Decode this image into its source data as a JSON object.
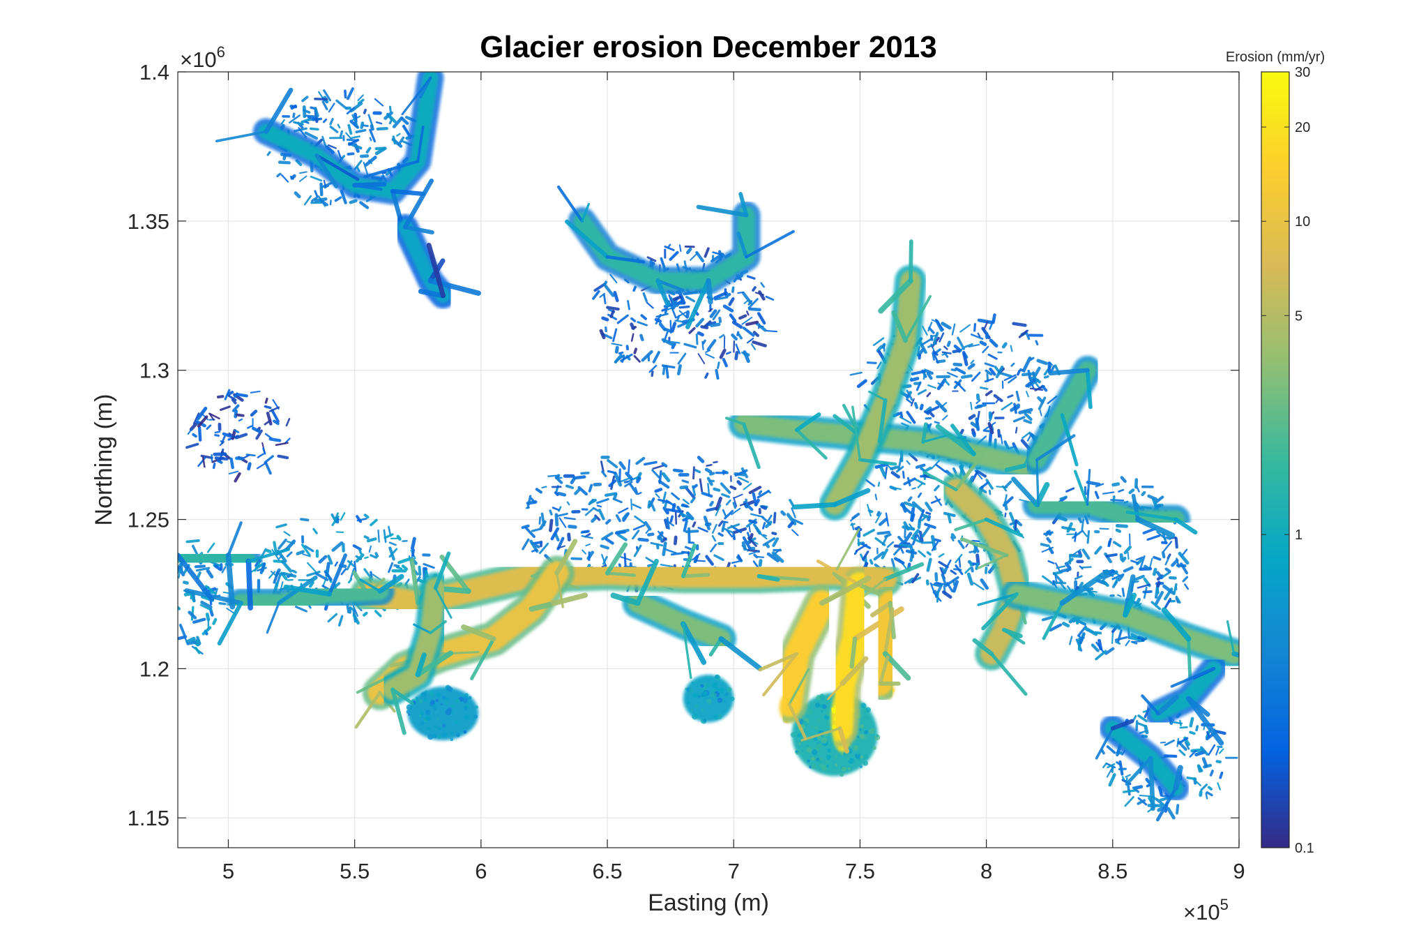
{
  "chart_data": {
    "type": "heatmap",
    "title": "Glacier erosion December 2013",
    "xlabel": "Easting (m)",
    "ylabel": "Northing (m)",
    "xlim": [
      480000,
      900000
    ],
    "ylim": [
      1140000,
      1400000
    ],
    "x_ticks": [
      500000,
      550000,
      600000,
      650000,
      700000,
      750000,
      800000,
      850000,
      900000
    ],
    "x_tick_labels": [
      "5",
      "5.5",
      "6",
      "6.5",
      "7",
      "7.5",
      "8",
      "8.5",
      "9"
    ],
    "x_exponent_label": "×10",
    "x_exponent": "5",
    "y_ticks": [
      1150000,
      1200000,
      1250000,
      1300000,
      1350000,
      1400000
    ],
    "y_tick_labels": [
      "1.15",
      "1.2",
      "1.25",
      "1.3",
      "1.35",
      "1.4"
    ],
    "y_exponent_label": "×10",
    "y_exponent": "6",
    "grid": true,
    "colorbar": {
      "label": "Erosion (mm/yr)",
      "scale": "log",
      "range": [
        0.1,
        30
      ],
      "ticks": [
        0.1,
        1,
        5,
        10,
        20,
        30
      ],
      "tick_labels": [
        "0.1",
        "1",
        "5",
        "10",
        "20",
        "30"
      ],
      "colormap": [
        "#352a87",
        "#0363e1",
        "#1485d4",
        "#06a7c6",
        "#38b99e",
        "#92bf73",
        "#d9ba56",
        "#fcce2e",
        "#f9fb0e"
      ]
    },
    "glacier_trunks": [
      {
        "name": "",
        "points": [
          [
            555000,
            1225000
          ],
          [
            575000,
            1222000
          ],
          [
            595000,
            1226000
          ],
          [
            620000,
            1231000
          ],
          [
            650000,
            1232000
          ],
          [
            680000,
            1231000
          ],
          [
            710000,
            1231000
          ],
          [
            740000,
            1232000
          ],
          [
            760000,
            1230000
          ]
        ],
        "erosion": 8
      },
      {
        "name": "",
        "points": [
          [
            630000,
            1232000
          ],
          [
            620000,
            1220000
          ],
          [
            605000,
            1210000
          ],
          [
            585000,
            1205000
          ],
          [
            570000,
            1200000
          ],
          [
            560000,
            1192000
          ]
        ],
        "erosion": 10
      },
      {
        "name": "",
        "points": [
          [
            582000,
            1227000
          ],
          [
            580000,
            1212000
          ],
          [
            575000,
            1198000
          ],
          [
            565000,
            1193000
          ]
        ],
        "erosion": 4
      },
      {
        "name": "",
        "points": [
          [
            662000,
            1222000
          ],
          [
            680000,
            1215000
          ],
          [
            695000,
            1210000
          ]
        ],
        "erosion": 3
      },
      {
        "name": "",
        "points": [
          [
            750000,
            1228000
          ],
          [
            748000,
            1210000
          ],
          [
            743000,
            1195000
          ],
          [
            742000,
            1180000
          ]
        ],
        "erosion": 18
      },
      {
        "name": "",
        "points": [
          [
            735000,
            1222000
          ],
          [
            725000,
            1205000
          ],
          [
            722000,
            1188000
          ]
        ],
        "erosion": 14
      },
      {
        "name": "",
        "points": [
          [
            762000,
            1222000
          ],
          [
            760000,
            1205000
          ],
          [
            758000,
            1195000
          ]
        ],
        "erosion": 12
      },
      {
        "name": "",
        "points": [
          [
            704000,
            1282000
          ],
          [
            725000,
            1280000
          ],
          [
            750000,
            1278000
          ],
          [
            775000,
            1276000
          ],
          [
            795000,
            1272000
          ],
          [
            815000,
            1268000
          ]
        ],
        "erosion": 3
      },
      {
        "name": "",
        "points": [
          [
            788000,
            1260000
          ],
          [
            800000,
            1250000
          ],
          [
            808000,
            1238000
          ],
          [
            812000,
            1225000
          ],
          [
            807000,
            1213000
          ],
          [
            802000,
            1205000
          ]
        ],
        "erosion": 6
      },
      {
        "name": "",
        "points": [
          [
            812000,
            1225000
          ],
          [
            830000,
            1222000
          ],
          [
            855000,
            1218000
          ],
          [
            880000,
            1210000
          ],
          [
            898000,
            1205000
          ]
        ],
        "erosion": 3
      },
      {
        "name": "",
        "points": [
          [
            820000,
            1255000
          ],
          [
            840000,
            1255000
          ],
          [
            860000,
            1250000
          ],
          [
            875000,
            1250000
          ]
        ],
        "erosion": 2
      },
      {
        "name": "",
        "points": [
          [
            770000,
            1330000
          ],
          [
            768000,
            1310000
          ],
          [
            760000,
            1290000
          ],
          [
            750000,
            1270000
          ],
          [
            740000,
            1255000
          ]
        ],
        "erosion": 4
      },
      {
        "name": "",
        "points": [
          [
            640000,
            1350000
          ],
          [
            650000,
            1338000
          ],
          [
            670000,
            1330000
          ],
          [
            690000,
            1330000
          ],
          [
            705000,
            1338000
          ],
          [
            705000,
            1352000
          ]
        ],
        "erosion": 1.5
      },
      {
        "name": "",
        "points": [
          [
            515000,
            1380000
          ],
          [
            535000,
            1372000
          ],
          [
            550000,
            1362000
          ],
          [
            565000,
            1360000
          ],
          [
            575000,
            1370000
          ],
          [
            580000,
            1398000
          ]
        ],
        "erosion": 1
      },
      {
        "name": "",
        "points": [
          [
            570000,
            1348000
          ],
          [
            580000,
            1330000
          ],
          [
            585000,
            1325000
          ]
        ],
        "erosion": 0.8
      },
      {
        "name": "",
        "points": [
          [
            505000,
            1222000
          ],
          [
            520000,
            1222000
          ],
          [
            540000,
            1225000
          ],
          [
            560000,
            1226000
          ]
        ],
        "erosion": 2
      },
      {
        "name": "",
        "points": [
          [
            480000,
            1238000
          ],
          [
            500000,
            1238000
          ],
          [
            508000,
            1236000
          ]
        ],
        "erosion": 1.5
      },
      {
        "name": "",
        "points": [
          [
            850000,
            1180000
          ],
          [
            865000,
            1170000
          ],
          [
            875000,
            1160000
          ]
        ],
        "erosion": 1
      },
      {
        "name": "",
        "points": [
          [
            840000,
            1300000
          ],
          [
            830000,
            1285000
          ],
          [
            820000,
            1270000
          ]
        ],
        "erosion": 2
      },
      {
        "name": "",
        "points": [
          [
            890000,
            1200000
          ],
          [
            880000,
            1190000
          ],
          [
            868000,
            1185000
          ]
        ],
        "erosion": 1
      }
    ],
    "glacier_termini": [
      {
        "center": [
          585000,
          1185000
        ],
        "size": [
          28000,
          18000
        ],
        "erosion": 0.7
      },
      {
        "center": [
          740000,
          1178000
        ],
        "size": [
          34000,
          28000
        ],
        "erosion": 1.2
      },
      {
        "center": [
          690000,
          1190000
        ],
        "size": [
          20000,
          16000
        ],
        "erosion": 0.8
      },
      {
        "center": [
          743000,
          1183000
        ],
        "size": [
          9000,
          22000
        ],
        "erosion": 20
      },
      {
        "center": [
          722000,
          1187000
        ],
        "size": [
          8000,
          10000
        ],
        "erosion": 14
      },
      {
        "center": [
          761000,
          1193000
        ],
        "size": [
          5000,
          6000
        ],
        "erosion": 12
      },
      {
        "center": [
          567000,
          1193000
        ],
        "size": [
          7000,
          6000
        ],
        "erosion": 8
      },
      {
        "center": [
          802000,
          1206000
        ],
        "size": [
          6000,
          6000
        ],
        "erosion": 8
      }
    ],
    "ice_fields": [
      {
        "center": [
          545000,
          1375000
        ],
        "size": [
          60000,
          40000
        ],
        "erosion": 0.3
      },
      {
        "center": [
          680000,
          1320000
        ],
        "size": [
          70000,
          45000
        ],
        "erosion": 0.2
      },
      {
        "center": [
          790000,
          1295000
        ],
        "size": [
          80000,
          50000
        ],
        "erosion": 0.25
      },
      {
        "center": [
          670000,
          1250000
        ],
        "size": [
          110000,
          45000
        ],
        "erosion": 0.25
      },
      {
        "center": [
          780000,
          1250000
        ],
        "size": [
          70000,
          50000
        ],
        "erosion": 0.3
      },
      {
        "center": [
          850000,
          1235000
        ],
        "size": [
          60000,
          60000
        ],
        "erosion": 0.3
      },
      {
        "center": [
          545000,
          1235000
        ],
        "size": [
          70000,
          35000
        ],
        "erosion": 0.4
      },
      {
        "center": [
          490000,
          1225000
        ],
        "size": [
          22000,
          40000
        ],
        "erosion": 0.4
      },
      {
        "center": [
          870000,
          1170000
        ],
        "size": [
          50000,
          35000
        ],
        "erosion": 0.35
      },
      {
        "center": [
          505000,
          1280000
        ],
        "size": [
          40000,
          30000
        ],
        "erosion": 0.15
      }
    ]
  }
}
